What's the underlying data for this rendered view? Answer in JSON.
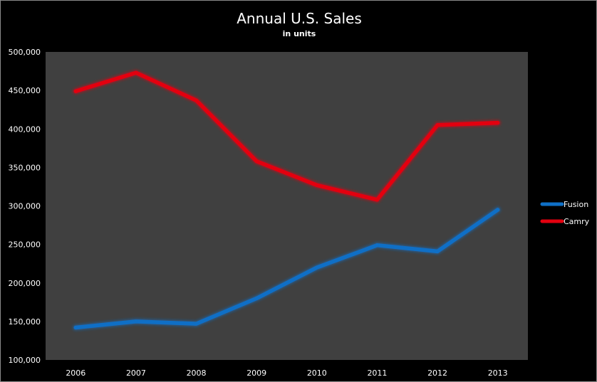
{
  "chart_data": {
    "type": "line",
    "title": "Annual U.S. Sales",
    "subtitle": "in units",
    "xlabel": "",
    "ylabel": "",
    "categories": [
      "2006",
      "2007",
      "2008",
      "2009",
      "2010",
      "2011",
      "2012",
      "2013"
    ],
    "ylim": [
      100000,
      500000
    ],
    "yticks": [
      100000,
      150000,
      200000,
      250000,
      300000,
      350000,
      400000,
      450000,
      500000
    ],
    "ytick_labels": [
      "100,000",
      "150,000",
      "200,000",
      "250,000",
      "300,000",
      "350,000",
      "400,000",
      "450,000",
      "500,000"
    ],
    "grid": false,
    "legend_position": "right",
    "plot_background": "#404040",
    "background": "#000000",
    "series": [
      {
        "name": "Fusion",
        "color": "#0f6fc6",
        "values": [
          142000,
          150000,
          147000,
          180000,
          220000,
          249000,
          241000,
          295000
        ]
      },
      {
        "name": "Camry",
        "color": "#e3000f",
        "values": [
          449000,
          473000,
          437000,
          358000,
          327000,
          308000,
          405000,
          408000
        ]
      }
    ]
  }
}
